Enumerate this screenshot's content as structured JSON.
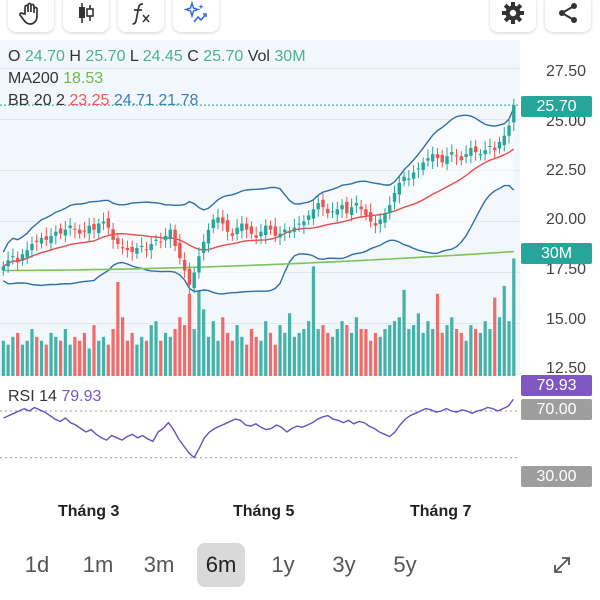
{
  "toolbar": {
    "left_icons": [
      "hand-icon",
      "candlestick-icon",
      "function-icon",
      "sparkle-icon"
    ],
    "right_icons": [
      "gear-icon",
      "share-icon"
    ]
  },
  "legend": {
    "open_label": "O",
    "open": "24.70",
    "high_label": "H",
    "high": "25.70",
    "low_label": "L",
    "low": "24.45",
    "close_label": "C",
    "close": "25.70",
    "vol_label": "Vol",
    "vol": "30M",
    "ma_label": "MA200",
    "ma_value": "18.53",
    "bb_label": "BB 20 2",
    "bb_upper": "23.25",
    "bb_mid": "24.71",
    "bb_lower": "21.78",
    "rsi_label": "RSI 14",
    "rsi_value": "79.93"
  },
  "price_axis": [
    "27.50",
    "25.00",
    "22.50",
    "20.00",
    "17.50",
    "15.00",
    "12.50"
  ],
  "rsi_axis": [
    "70.00",
    "30.00"
  ],
  "tags": {
    "price": "25.70",
    "volume": "30M",
    "rsi": "79.93",
    "rsi_high": "70.00",
    "rsi_low": "30.00"
  },
  "x_axis": [
    "Tháng 3",
    "Tháng 5",
    "Tháng 7"
  ],
  "periods": [
    "1d",
    "1m",
    "3m",
    "6m",
    "1y",
    "3y",
    "5y"
  ],
  "active_period": "6m",
  "expand_icon": "expand-icon",
  "colors": {
    "up": "#26a69a",
    "down": "#ef5350",
    "ma200": "#7cc35a",
    "bb_band": "#2e6fa7",
    "bb_mid": "#e84c4c",
    "rsi": "#6a4fc2",
    "panel_bg": "#f2f7fb",
    "price_tag": "#26a69a",
    "volume_tag": "#26a69a",
    "rsi_tag": "#7e57c2",
    "rsi_level_tag": "#9e9e9e"
  },
  "chart_data": {
    "type": "candlestick",
    "x_ticks": [
      "Tháng 3",
      "Tháng 5",
      "Tháng 7"
    ],
    "ylim": [
      11.5,
      28.5
    ],
    "close": [
      17.8,
      18.1,
      18.3,
      18.0,
      18.4,
      18.6,
      18.9,
      19.0,
      19.2,
      19.1,
      19.3,
      19.5,
      19.4,
      19.6,
      19.8,
      19.6,
      19.4,
      19.5,
      19.8,
      19.6,
      19.9,
      20.0,
      19.7,
      19.1,
      18.9,
      18.7,
      18.6,
      18.5,
      18.7,
      18.8,
      18.6,
      18.9,
      19.1,
      19.0,
      19.3,
      19.6,
      18.8,
      18.2,
      17.6,
      16.9,
      17.5,
      18.3,
      19.0,
      19.6,
      20.1,
      20.2,
      19.9,
      19.5,
      19.3,
      19.7,
      19.9,
      19.6,
      19.4,
      19.2,
      19.5,
      19.8,
      19.6,
      19.3,
      19.4,
      19.6,
      19.5,
      19.7,
      19.9,
      20.0,
      20.3,
      20.6,
      20.9,
      20.7,
      20.4,
      20.5,
      20.6,
      20.8,
      20.4,
      20.7,
      20.9,
      20.6,
      20.3,
      20.0,
      19.8,
      20.1,
      20.4,
      20.8,
      21.4,
      21.9,
      22.2,
      22.1,
      22.4,
      22.6,
      22.9,
      23.1,
      23.3,
      23.1,
      22.9,
      23.2,
      23.4,
      23.2,
      23.0,
      23.3,
      23.6,
      23.4,
      23.3,
      23.5,
      23.7,
      23.5,
      23.9,
      24.2,
      24.7,
      25.7
    ],
    "volume_m": [
      9,
      8,
      10,
      11,
      8,
      9,
      12,
      10,
      9,
      8,
      11,
      10,
      9,
      12,
      8,
      10,
      9,
      11,
      7,
      13,
      9,
      10,
      8,
      12,
      24,
      15,
      9,
      11,
      8,
      10,
      9,
      13,
      14,
      9,
      11,
      10,
      12,
      15,
      13,
      21,
      12,
      22,
      17,
      10,
      14,
      9,
      15,
      11,
      9,
      13,
      10,
      8,
      12,
      10,
      9,
      14,
      11,
      8,
      13,
      11,
      16,
      10,
      11,
      12,
      14,
      28,
      12,
      13,
      11,
      10,
      12,
      14,
      13,
      11,
      15,
      12,
      12,
      9,
      11,
      10,
      12,
      13,
      14,
      15,
      22,
      12,
      13,
      16,
      11,
      14,
      12,
      21,
      11,
      13,
      15,
      12,
      11,
      9,
      13,
      12,
      11,
      14,
      12,
      20,
      15,
      23,
      14,
      30
    ],
    "rsi": [
      64,
      66,
      68,
      70,
      72,
      70,
      73,
      71,
      69,
      66,
      63,
      61,
      64,
      60,
      58,
      55,
      52,
      54,
      50,
      47,
      45,
      49,
      47,
      45,
      48,
      50,
      47,
      49,
      46,
      44,
      52,
      55,
      60,
      54,
      46,
      40,
      34,
      30,
      38,
      47,
      52,
      55,
      57,
      59,
      61,
      63,
      62,
      58,
      57,
      59,
      56,
      54,
      55,
      58,
      56,
      52,
      55,
      57,
      56,
      58,
      60,
      63,
      65,
      66,
      63,
      62,
      60,
      62,
      59,
      61,
      60,
      57,
      55,
      52,
      50,
      48,
      52,
      58,
      63,
      66,
      68,
      70,
      72,
      71,
      69,
      70,
      72,
      70,
      69,
      71,
      70,
      68,
      70,
      71,
      73,
      72,
      70,
      72,
      74,
      80
    ],
    "ma200": [
      17.6,
      17.9,
      18.53
    ],
    "bb": {
      "upper": 23.25,
      "mid": 24.71,
      "lower": 21.78
    }
  }
}
